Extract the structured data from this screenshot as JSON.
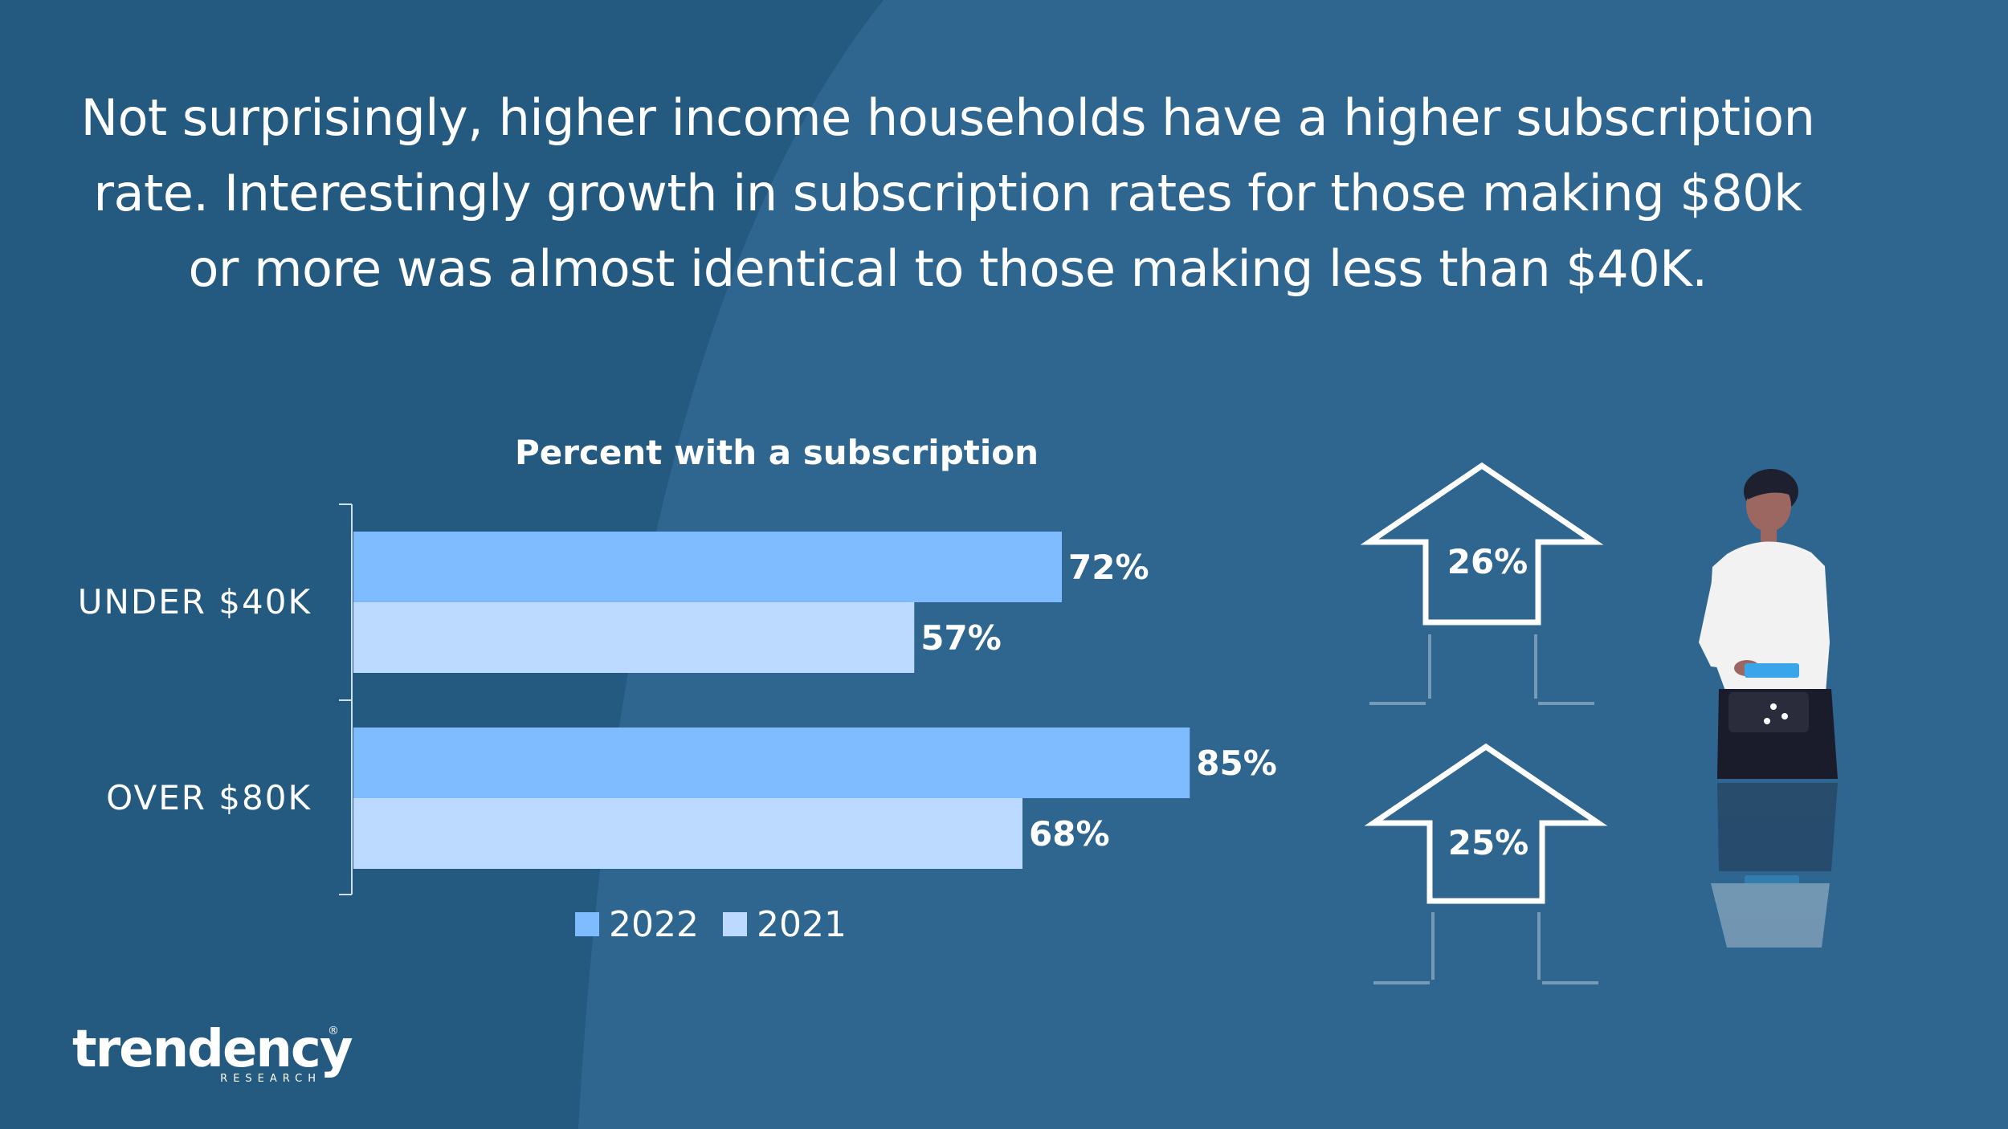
{
  "colors": {
    "background": "#2e6690",
    "background_dark": "#245a80",
    "series_2022": "#7fbcff",
    "series_2021": "#bcd9ff",
    "text": "#ffffff"
  },
  "headline": {
    "line1": "Not surprisingly, higher income households have a higher subscription",
    "line2": "rate. Interestingly growth in subscription rates for those making $80k",
    "line3": "or more was almost identical to those making less than $40K."
  },
  "chart_data": {
    "type": "bar",
    "orientation": "horizontal",
    "title": "Percent with a subscription",
    "categories": [
      "UNDER $40K",
      "OVER $80K"
    ],
    "series": [
      {
        "name": "2022",
        "values": [
          72,
          85
        ],
        "labels": [
          "72%",
          "85%"
        ]
      },
      {
        "name": "2021",
        "values": [
          57,
          68
        ],
        "labels": [
          "57%",
          "68%"
        ]
      }
    ],
    "xlim": [
      0,
      100
    ],
    "grid": false,
    "legend": "bottom"
  },
  "growth": {
    "under_40k": "26%",
    "over_80k": "25%",
    "icon": "up-arrow-icon"
  },
  "illustration": {
    "icon": "person-holding-tablet-icon"
  },
  "logo": {
    "name": "trendency",
    "sub": "RESEARCH",
    "mark": "®"
  }
}
